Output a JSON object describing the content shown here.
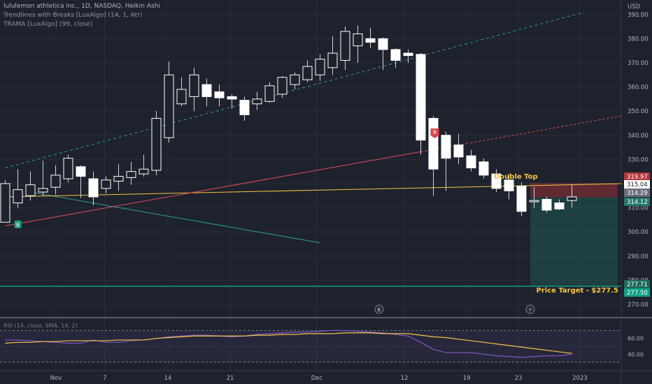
{
  "header": {
    "title": "lululemon athletica inc., 1D, NASDAQ, Heikin Ashi",
    "indicator_1": "Trendlines with Breaks [LuxAlgo] (14, 1, Atr)",
    "indicator_2": "TRAMA [LuxAlgo] (99, close)"
  },
  "currency": "USD",
  "annotations": {
    "double_top": "Double Top",
    "price_target": "Price Target - $277.5",
    "buy_marker": "B",
    "sell_marker": "B",
    "earnings_marker": "E",
    "flash_marker": "⚡"
  },
  "price_tags": [
    {
      "value": "319.97",
      "bg": "#b2363c",
      "fg": "#ffffff"
    },
    {
      "value": "315.04",
      "bg": "#ffffff",
      "fg": "#131722"
    },
    {
      "value": "314.29",
      "bg": "#6b6e78",
      "fg": "#ffffff"
    },
    {
      "value": "314.12",
      "bg": "#26786b",
      "fg": "#ffffff"
    },
    {
      "value": "277.71",
      "bg": "#1d6b5a",
      "fg": "#ffffff"
    },
    {
      "value": "277.50",
      "bg": "#12a085",
      "fg": "#ffffff"
    }
  ],
  "rsi": {
    "label": "RSI (14, close, SMA, 14, 2)",
    "ticks": [
      "60.00",
      "40.00"
    ]
  },
  "colors": {
    "background": "#1e222d",
    "grid": "#2a2e39",
    "bull": "#ffffff",
    "bear": "#ffffff",
    "wick": "#d1d4dc",
    "trama": "#f6c344",
    "resistance_trendline": "#e04e5a",
    "support_trendline": "#2b9e9b",
    "target_line": "#12a085",
    "rsi_line": "#7e57c2",
    "rsi_ma": "#f6c344"
  },
  "chart_data": {
    "type": "candlestick",
    "price_axis": {
      "ticks": [
        390,
        380,
        370,
        360,
        350,
        340,
        330,
        320,
        310,
        300,
        290,
        280,
        270
      ],
      "tick_labels": [
        "390.00",
        "380.00",
        "370.00",
        "360.00",
        "350.00",
        "340.00",
        "330.00",
        "320.00",
        "310.00",
        "300.00",
        "290.00",
        "280.00",
        "270.00"
      ],
      "range": [
        264.5,
        396
      ]
    },
    "x_axis": {
      "labels": [
        "Nov",
        "7",
        "14",
        "21",
        "Dec",
        "12",
        "19",
        "23",
        "2023"
      ]
    },
    "candles": [
      {
        "o": 304.0,
        "h": 321.5,
        "l": 304.0,
        "c": 320.0
      },
      {
        "o": 312.0,
        "h": 326.0,
        "l": 310.0,
        "c": 317.5
      },
      {
        "o": 315.0,
        "h": 325.0,
        "l": 313.0,
        "c": 319.5
      },
      {
        "o": 316.5,
        "h": 329.5,
        "l": 315.0,
        "c": 318.0
      },
      {
        "o": 318.5,
        "h": 327.5,
        "l": 315.5,
        "c": 323.5
      },
      {
        "o": 322.0,
        "h": 332.0,
        "l": 320.5,
        "c": 330.5
      },
      {
        "o": 327.0,
        "h": 327.5,
        "l": 314.0,
        "c": 323.0
      },
      {
        "o": 322.0,
        "h": 325.0,
        "l": 311.0,
        "c": 314.5
      },
      {
        "o": 318.0,
        "h": 323.0,
        "l": 316.0,
        "c": 321.5
      },
      {
        "o": 321.0,
        "h": 328.0,
        "l": 317.0,
        "c": 323.0
      },
      {
        "o": 322.5,
        "h": 329.0,
        "l": 319.5,
        "c": 325.0
      },
      {
        "o": 324.0,
        "h": 332.0,
        "l": 323.0,
        "c": 326.0
      },
      {
        "o": 325.5,
        "h": 350.0,
        "l": 323.5,
        "c": 347.0
      },
      {
        "o": 339.0,
        "h": 370.5,
        "l": 337.0,
        "c": 365.0
      },
      {
        "o": 353.0,
        "h": 364.0,
        "l": 352.0,
        "c": 359.0
      },
      {
        "o": 356.0,
        "h": 368.0,
        "l": 350.0,
        "c": 365.0
      },
      {
        "o": 361.0,
        "h": 363.5,
        "l": 352.0,
        "c": 356.0
      },
      {
        "o": 358.0,
        "h": 361.0,
        "l": 352.0,
        "c": 355.5
      },
      {
        "o": 356.0,
        "h": 357.0,
        "l": 351.0,
        "c": 355.0
      },
      {
        "o": 354.5,
        "h": 356.0,
        "l": 346.0,
        "c": 348.5
      },
      {
        "o": 353.0,
        "h": 358.0,
        "l": 350.5,
        "c": 355.0
      },
      {
        "o": 354.0,
        "h": 362.0,
        "l": 353.5,
        "c": 360.5
      },
      {
        "o": 357.0,
        "h": 364.5,
        "l": 355.5,
        "c": 364.0
      },
      {
        "o": 361.0,
        "h": 366.0,
        "l": 359.0,
        "c": 365.0
      },
      {
        "o": 363.0,
        "h": 371.0,
        "l": 362.0,
        "c": 368.5
      },
      {
        "o": 365.0,
        "h": 373.5,
        "l": 362.5,
        "c": 371.5
      },
      {
        "o": 368.0,
        "h": 381.0,
        "l": 365.0,
        "c": 374.0
      },
      {
        "o": 371.0,
        "h": 385.0,
        "l": 367.0,
        "c": 383.0
      },
      {
        "o": 377.0,
        "h": 385.5,
        "l": 370.0,
        "c": 382.0
      },
      {
        "o": 380.0,
        "h": 384.5,
        "l": 376.0,
        "c": 378.5
      },
      {
        "o": 380.0,
        "h": 380.5,
        "l": 367.0,
        "c": 375.5
      },
      {
        "o": 375.5,
        "h": 376.0,
        "l": 368.0,
        "c": 371.0
      },
      {
        "o": 374.0,
        "h": 375.5,
        "l": 370.0,
        "c": 373.0
      },
      {
        "o": 373.5,
        "h": 374.0,
        "l": 332.0,
        "c": 338.0
      },
      {
        "o": 347.0,
        "h": 348.0,
        "l": 315.0,
        "c": 326.0
      },
      {
        "o": 340.0,
        "h": 341.5,
        "l": 317.0,
        "c": 330.5
      },
      {
        "o": 336.0,
        "h": 340.5,
        "l": 328.0,
        "c": 331.0
      },
      {
        "o": 331.5,
        "h": 334.0,
        "l": 325.0,
        "c": 326.5
      },
      {
        "o": 329.0,
        "h": 330.5,
        "l": 322.0,
        "c": 323.5
      },
      {
        "o": 324.0,
        "h": 326.0,
        "l": 316.5,
        "c": 318.0
      },
      {
        "o": 321.5,
        "h": 324.0,
        "l": 313.5,
        "c": 317.0
      },
      {
        "o": 319.0,
        "h": 320.5,
        "l": 306.5,
        "c": 308.5
      },
      {
        "o": 312.5,
        "h": 318.5,
        "l": 310.0,
        "c": 313.0
      },
      {
        "o": 313.5,
        "h": 314.5,
        "l": 308.0,
        "c": 309.0
      },
      {
        "o": 312.0,
        "h": 313.5,
        "l": 309.0,
        "c": 309.5
      },
      {
        "o": 313.0,
        "h": 319.5,
        "l": 310.0,
        "c": 314.5
      }
    ],
    "trendlines": [
      {
        "name": "",
        "from": [
          0,
          326.5
        ],
        "to": [
          46,
          391.0
        ],
        "style": "dashed",
        "color": "#2b9e9b"
      },
      {
        "name": "",
        "from": [
          0,
          302.5
        ],
        "to": [
          50,
          349.0
        ],
        "style": "mixed",
        "color": "#e04e5a"
      },
      {
        "name": "",
        "from": [
          2,
          316.5
        ],
        "to": [
          25,
          295.5
        ],
        "style": "solid",
        "color": "#2b9e9b"
      },
      {
        "name": "",
        "from": [
          0,
          314.5
        ],
        "to": [
          49,
          320.0
        ],
        "style": "solid",
        "color": "#f6c344"
      }
    ],
    "target_level": 277.5,
    "rsi_values": [
      58,
      58,
      57,
      56,
      55,
      54,
      54,
      58,
      55,
      55,
      57,
      58,
      60,
      62,
      63,
      64,
      64,
      63,
      62,
      63,
      65,
      66,
      67,
      68,
      68,
      69,
      70,
      70,
      69,
      68,
      67,
      65,
      63,
      55,
      46,
      42,
      42,
      42,
      40,
      38,
      37,
      36,
      37,
      38,
      38,
      40
    ],
    "rsi_ma_values": [
      54,
      55,
      55,
      56,
      56,
      57,
      57,
      57,
      57,
      58,
      58,
      58,
      60,
      61,
      62,
      63,
      63,
      63,
      63,
      63,
      64,
      64,
      65,
      65,
      66,
      66,
      66,
      67,
      67,
      67,
      66,
      66,
      66,
      64,
      62,
      61,
      59,
      57,
      55,
      53,
      51,
      49,
      47,
      45,
      43,
      41
    ],
    "rsi_range": [
      20,
      80
    ]
  }
}
